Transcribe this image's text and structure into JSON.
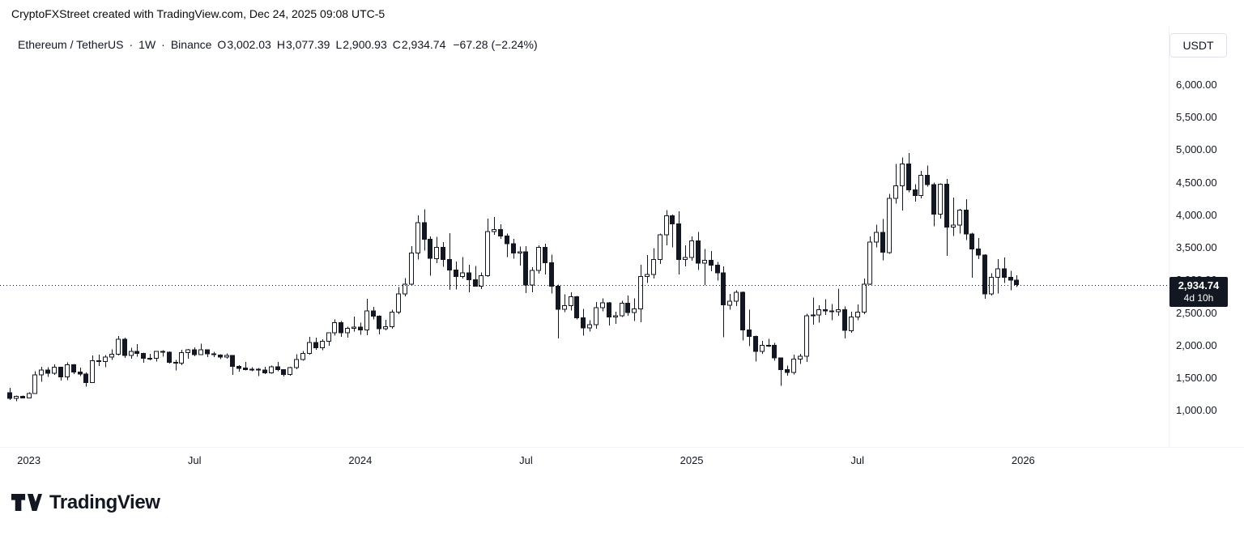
{
  "attribution": "CryptoFXStreet created with TradingView.com, Dec 24, 2025 09:08 UTC-5",
  "header": {
    "symbol": "Ethereum / TetherUS",
    "separator": "·",
    "interval": "1W",
    "exchange": "Binance",
    "open_label": "O",
    "open": "3,002.03",
    "high_label": "H",
    "high": "3,077.39",
    "low_label": "L",
    "low": "2,900.93",
    "close_label": "C",
    "close": "2,934.74",
    "change": "−67.28 (−2.24%)",
    "currency_button": "USDT"
  },
  "price_label": {
    "price": "2,934.74",
    "countdown": "4d 10h"
  },
  "footer": {
    "logo_text": "TradingView"
  },
  "colors": {
    "background": "#ffffff",
    "foreground": "#131722",
    "up_candle_fill": "#ffffff",
    "down_candle_fill": "#131722",
    "candle_border": "#131722",
    "badge_bg": "#131722",
    "badge_text": "#ffffff",
    "button_border": "#e0e3eb",
    "axis_border": "#f0f3fa"
  },
  "chart_data": {
    "type": "candlestick",
    "symbol": "ETHUSDT",
    "exchange": "Binance",
    "interval": "1W",
    "title": "Ethereum / TetherUS · 1W · Binance",
    "last_price": 2934.74,
    "last_bar_countdown": "4d 10h",
    "grid": false,
    "ylim": [
      530,
      6373
    ],
    "y_ticks": [
      {
        "value": 6000,
        "label": "6,000.00"
      },
      {
        "value": 5500,
        "label": "5,500.00"
      },
      {
        "value": 5000,
        "label": "5,000.00"
      },
      {
        "value": 4500,
        "label": "4,500.00"
      },
      {
        "value": 4000,
        "label": "4,000.00"
      },
      {
        "value": 3500,
        "label": "3,500.00"
      },
      {
        "value": 3000,
        "label": "3,000.00"
      },
      {
        "value": 2500,
        "label": "2,500.00"
      },
      {
        "value": 2000,
        "label": "2,000.00"
      },
      {
        "value": 1500,
        "label": "1,500.00"
      },
      {
        "value": 1000,
        "label": "1,000.00"
      }
    ],
    "x_ticks": [
      {
        "week": 3,
        "label": "2023"
      },
      {
        "week": 29,
        "label": "Jul"
      },
      {
        "week": 55,
        "label": "2024"
      },
      {
        "week": 81,
        "label": "Jul"
      },
      {
        "week": 107,
        "label": "2025"
      },
      {
        "week": 133,
        "label": "Jul"
      },
      {
        "week": 159,
        "label": "2026"
      }
    ],
    "candles": [
      [
        1275,
        1350,
        1165,
        1187
      ],
      [
        1187,
        1230,
        1146,
        1219
      ],
      [
        1219,
        1232,
        1190,
        1196
      ],
      [
        1196,
        1285,
        1186,
        1264
      ],
      [
        1264,
        1603,
        1258,
        1551
      ],
      [
        1551,
        1674,
        1442,
        1627
      ],
      [
        1627,
        1665,
        1519,
        1572
      ],
      [
        1572,
        1710,
        1551,
        1667
      ],
      [
        1667,
        1672,
        1461,
        1515
      ],
      [
        1515,
        1742,
        1471,
        1702
      ],
      [
        1702,
        1718,
        1562,
        1594
      ],
      [
        1594,
        1663,
        1532,
        1564
      ],
      [
        1564,
        1585,
        1368,
        1430
      ],
      [
        1430,
        1846,
        1425,
        1767
      ],
      [
        1767,
        1860,
        1686,
        1755
      ],
      [
        1755,
        1856,
        1670,
        1822
      ],
      [
        1822,
        1943,
        1778,
        1865
      ],
      [
        1865,
        2145,
        1849,
        2094
      ],
      [
        2094,
        2120,
        1810,
        1849
      ],
      [
        1849,
        1966,
        1795,
        1907
      ],
      [
        1907,
        2021,
        1832,
        1877
      ],
      [
        1877,
        1890,
        1738,
        1803
      ],
      [
        1803,
        1870,
        1774,
        1805
      ],
      [
        1805,
        1913,
        1753,
        1908
      ],
      [
        1908,
        1926,
        1827,
        1898
      ],
      [
        1898,
        1907,
        1721,
        1740
      ],
      [
        1740,
        1782,
        1620,
        1728
      ],
      [
        1728,
        1936,
        1700,
        1890
      ],
      [
        1890,
        1946,
        1800,
        1935
      ],
      [
        1935,
        1974,
        1833,
        1862
      ],
      [
        1862,
        2029,
        1851,
        1934
      ],
      [
        1934,
        1942,
        1825,
        1875
      ],
      [
        1875,
        1905,
        1825,
        1857
      ],
      [
        1857,
        1868,
        1794,
        1826
      ],
      [
        1826,
        1877,
        1801,
        1847
      ],
      [
        1847,
        1851,
        1550,
        1680
      ],
      [
        1680,
        1697,
        1601,
        1652
      ],
      [
        1652,
        1747,
        1617,
        1627
      ],
      [
        1627,
        1665,
        1608,
        1637
      ],
      [
        1637,
        1658,
        1531,
        1622
      ],
      [
        1622,
        1672,
        1564,
        1581
      ],
      [
        1581,
        1694,
        1570,
        1672
      ],
      [
        1672,
        1747,
        1605,
        1631
      ],
      [
        1631,
        1639,
        1522,
        1553
      ],
      [
        1553,
        1672,
        1540,
        1664
      ],
      [
        1664,
        1864,
        1635,
        1784
      ],
      [
        1784,
        1916,
        1765,
        1880
      ],
      [
        1880,
        2131,
        1859,
        2045
      ],
      [
        2045,
        2120,
        1934,
        1963
      ],
      [
        1963,
        2094,
        1930,
        2063
      ],
      [
        2063,
        2200,
        1995,
        2193
      ],
      [
        2193,
        2403,
        2155,
        2352
      ],
      [
        2352,
        2374,
        2135,
        2196
      ],
      [
        2196,
        2287,
        2122,
        2264
      ],
      [
        2264,
        2445,
        2212,
        2282
      ],
      [
        2282,
        2352,
        2163,
        2239
      ],
      [
        2239,
        2717,
        2161,
        2531
      ],
      [
        2531,
        2594,
        2404,
        2453
      ],
      [
        2453,
        2466,
        2168,
        2257
      ],
      [
        2257,
        2396,
        2233,
        2290
      ],
      [
        2290,
        2550,
        2260,
        2510
      ],
      [
        2510,
        2896,
        2480,
        2790
      ],
      [
        2790,
        3035,
        2756,
        2940
      ],
      [
        2940,
        3528,
        2930,
        3420
      ],
      [
        3420,
        4000,
        3320,
        3885
      ],
      [
        3885,
        4093,
        3457,
        3630
      ],
      [
        3630,
        3675,
        3070,
        3337
      ],
      [
        3337,
        3668,
        3262,
        3508
      ],
      [
        3508,
        3588,
        3212,
        3319
      ],
      [
        3319,
        3728,
        2852,
        3157
      ],
      [
        3157,
        3287,
        2863,
        3062
      ],
      [
        3062,
        3356,
        3030,
        3117
      ],
      [
        3117,
        3240,
        2815,
        3013
      ],
      [
        3013,
        3221,
        2902,
        2911
      ],
      [
        2911,
        3120,
        2865,
        3072
      ],
      [
        3072,
        3950,
        3052,
        3750
      ],
      [
        3750,
        3975,
        3701,
        3780
      ],
      [
        3780,
        3860,
        3635,
        3680
      ],
      [
        3680,
        3721,
        3361,
        3565
      ],
      [
        3565,
        3640,
        3334,
        3420
      ],
      [
        3420,
        3520,
        3228,
        3438
      ],
      [
        3438,
        3529,
        2807,
        2931
      ],
      [
        2931,
        3202,
        2815,
        3155
      ],
      [
        3155,
        3539,
        3101,
        3505
      ],
      [
        3505,
        3564,
        3090,
        3270
      ],
      [
        3270,
        3398,
        2796,
        2910
      ],
      [
        2910,
        2938,
        2111,
        2555
      ],
      [
        2555,
        2786,
        2515,
        2612
      ],
      [
        2612,
        2820,
        2536,
        2748
      ],
      [
        2748,
        2762,
        2400,
        2428
      ],
      [
        2428,
        2560,
        2150,
        2268
      ],
      [
        2268,
        2390,
        2216,
        2319
      ],
      [
        2319,
        2666,
        2258,
        2581
      ],
      [
        2581,
        2726,
        2525,
        2658
      ],
      [
        2658,
        2668,
        2310,
        2441
      ],
      [
        2441,
        2521,
        2335,
        2455
      ],
      [
        2455,
        2686,
        2436,
        2647
      ],
      [
        2647,
        2769,
        2455,
        2506
      ],
      [
        2506,
        2722,
        2378,
        2560
      ],
      [
        2560,
        3240,
        2360,
        3060
      ],
      [
        3060,
        3390,
        2960,
        3090
      ],
      [
        3090,
        3496,
        3030,
        3320
      ],
      [
        3320,
        3720,
        3253,
        3700
      ],
      [
        3700,
        4080,
        3540,
        3990
      ],
      [
        3990,
        4010,
        3510,
        3870
      ],
      [
        3870,
        4060,
        3088,
        3320
      ],
      [
        3320,
        3540,
        3215,
        3350
      ],
      [
        3350,
        3675,
        3300,
        3610
      ],
      [
        3610,
        3745,
        3160,
        3267
      ],
      [
        3267,
        3480,
        2925,
        3310
      ],
      [
        3310,
        3453,
        3142,
        3232
      ],
      [
        3232,
        3283,
        2997,
        3118
      ],
      [
        3118,
        3216,
        2125,
        2622
      ],
      [
        2622,
        2795,
        2550,
        2680
      ],
      [
        2680,
        2850,
        2605,
        2820
      ],
      [
        2820,
        2833,
        2076,
        2237
      ],
      [
        2237,
        2550,
        1993,
        2143
      ],
      [
        2143,
        2153,
        1754,
        1911
      ],
      [
        1911,
        2069,
        1872,
        2004
      ],
      [
        2004,
        2104,
        1977,
        2006
      ],
      [
        2006,
        2040,
        1767,
        1812
      ],
      [
        1812,
        1815,
        1383,
        1630
      ],
      [
        1630,
        1690,
        1540,
        1585
      ],
      [
        1585,
        1860,
        1554,
        1791
      ],
      [
        1791,
        1870,
        1720,
        1838
      ],
      [
        1838,
        2490,
        1750,
        2460
      ],
      [
        2460,
        2738,
        2320,
        2472
      ],
      [
        2472,
        2620,
        2350,
        2553
      ],
      [
        2553,
        2710,
        2470,
        2530
      ],
      [
        2530,
        2635,
        2390,
        2516
      ],
      [
        2516,
        2873,
        2460,
        2550
      ],
      [
        2550,
        2600,
        2111,
        2230
      ],
      [
        2230,
        2520,
        2195,
        2440
      ],
      [
        2440,
        2630,
        2390,
        2515
      ],
      [
        2515,
        3030,
        2480,
        2940
      ],
      [
        2940,
        3675,
        2930,
        3590
      ],
      [
        3590,
        3855,
        3510,
        3740
      ],
      [
        3740,
        3940,
        3310,
        3430
      ],
      [
        3430,
        4330,
        3410,
        4260
      ],
      [
        4260,
        4790,
        4180,
        4450
      ],
      [
        4450,
        4890,
        4070,
        4790
      ],
      [
        4790,
        4955,
        4350,
        4390
      ],
      [
        4390,
        4480,
        4210,
        4300
      ],
      [
        4300,
        4680,
        4260,
        4615
      ],
      [
        4615,
        4760,
        4440,
        4470
      ],
      [
        4470,
        4500,
        3830,
        4020
      ],
      [
        4020,
        4490,
        3950,
        4480
      ],
      [
        4480,
        4560,
        3380,
        3820
      ],
      [
        3820,
        4270,
        3680,
        3850
      ],
      [
        3850,
        4100,
        3720,
        4080
      ],
      [
        4080,
        4250,
        3620,
        3710
      ],
      [
        3710,
        3730,
        3040,
        3480
      ],
      [
        3480,
        3650,
        3330,
        3390
      ],
      [
        3390,
        3400,
        2720,
        2790
      ],
      [
        2790,
        3110,
        2770,
        3050
      ],
      [
        3050,
        3330,
        2800,
        3180
      ],
      [
        3180,
        3350,
        2960,
        3050
      ],
      [
        3050,
        3150,
        2850,
        3002
      ],
      [
        3002.03,
        3077.39,
        2900.93,
        2934.74
      ]
    ]
  }
}
